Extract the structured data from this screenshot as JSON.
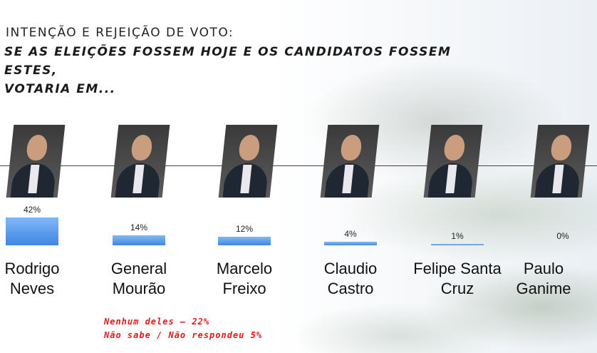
{
  "header": {
    "title": "INTENÇÃO E REJEIÇÃO DE VOTO:",
    "subtitle_line1": "SE AS ELEIÇÕES FOSSEM HOJE E OS CANDIDATOS FOSSEM ESTES,",
    "subtitle_line2": "VOTARIA EM..."
  },
  "chart_data": {
    "type": "bar",
    "title": "",
    "categories": [
      "Rodrigo Neves",
      "General Mourão",
      "Marcelo Freixo",
      "Claudio Castro",
      "Felipe Santa Cruz",
      "Paulo Ganime"
    ],
    "category_lines": [
      [
        "Rodrigo",
        "Neves"
      ],
      [
        "General",
        "Mourão"
      ],
      [
        "Marcelo",
        "Freixo"
      ],
      [
        "Claudio",
        "Castro"
      ],
      [
        "Felipe Santa",
        "Cruz"
      ],
      [
        "Paulo",
        "Ganime"
      ]
    ],
    "values": [
      42,
      14,
      12,
      4,
      1,
      0
    ],
    "data_labels": [
      "42%",
      "14%",
      "12%",
      "4%",
      "1%",
      "0%"
    ],
    "ylim": [
      0,
      42
    ],
    "grid": false,
    "bar_color": "#4a90e6"
  },
  "notes": {
    "none": "Nenhum deles – 22%",
    "dont_know": "Não sabe / Não respondeu 5%"
  }
}
